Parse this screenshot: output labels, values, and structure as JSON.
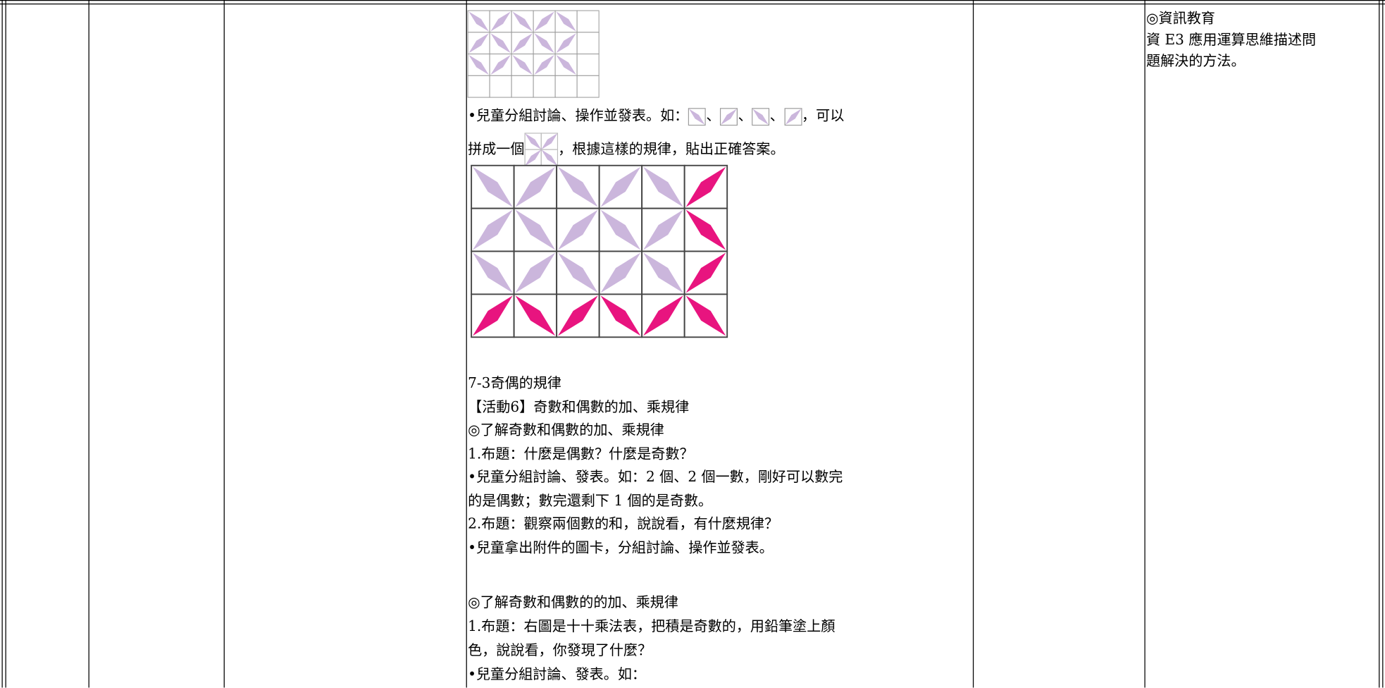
{
  "middle_column": {
    "tile_line_1": [
      "•兒童分組討論、操作並發表。如：",
      "、",
      "、",
      "、",
      "，可以"
    ],
    "tile_line_2": [
      "拼成一個",
      "，根據這樣的規律，貼出正確答案。"
    ],
    "lines": [
      "7-3奇偶的規律",
      "【活動6】奇數和偶數的加、乘規律",
      "◎了解奇數和偶數的加、乘規律",
      "1.布題：什麼是偶數？什麼是奇數？",
      "•兒童分組討論、發表。如：2 個、2 個一數，剛好可以數完",
      "的是偶數；數完還剩下 1 個的是奇數。",
      "2.布題：觀察兩個數的和，說說看，有什麼規律？",
      "•兒童拿出附件的圖卡，分組討論、操作並發表。"
    ],
    "lines_2": [
      "◎了解奇數和偶數的的加、乘規律",
      "1.布題：右圖是十十乘法表，把積是奇數的，用鉛筆塗上顏",
      "色，說說看，你發現了什麼？",
      "•兒童分組討論、發表。如："
    ]
  },
  "right_column": {
    "lines": [
      "◎資訊教育",
      "資 E3 應用運算思維描述問",
      "題解決的方法。"
    ]
  }
}
